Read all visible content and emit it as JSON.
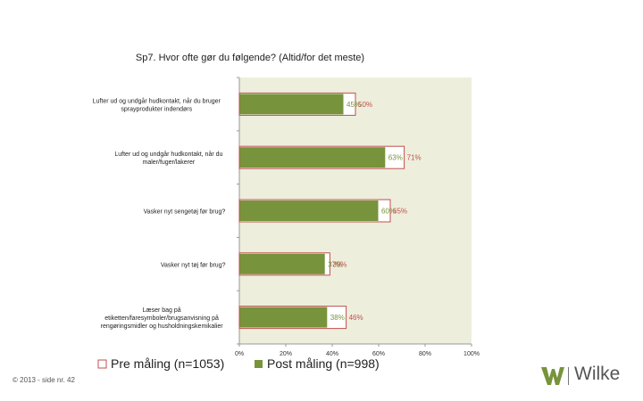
{
  "slide": {
    "footer": "© 2013 - side nr. 42",
    "logo_text": "Wilke",
    "logo_icon": "wilke-w-icon"
  },
  "chart_data": {
    "type": "bar",
    "orientation": "horizontal",
    "title": "Sp7. Hvor ofte gør du følgende? (Altid/for det meste)",
    "categories": [
      "Lufter ud og undgår hudkontakt, når du bruger sprayprodukter indendørs",
      "Lufter ud og undgår hudkontakt, når du maler/fuger/lakerer",
      "Vasker nyt sengetøj før brug?",
      "Vasker nyt tøj før brug?",
      "Læser bag på etiketten/faresymboler/brugsanvisning på rengøringsmidler og husholdningskemikalier"
    ],
    "series": [
      {
        "name": "Pre måling (n=1053)",
        "values": [
          50,
          71,
          65,
          39,
          46
        ],
        "color": "#ffffff",
        "border": "#c0504d",
        "label_color": "#c0504d"
      },
      {
        "name": "Post måling (n=998)",
        "values": [
          45,
          63,
          60,
          37,
          38
        ],
        "color": "#77933c",
        "border": "#77933c",
        "label_color": "#77933c"
      }
    ],
    "value_labels_pre": [
      "50%",
      "71%",
      "65%",
      "39%",
      "46%"
    ],
    "value_labels_post": [
      "45%",
      "63%",
      "60%",
      "37%",
      "38%"
    ],
    "xlim": [
      0,
      100
    ],
    "xticks": [
      "0%",
      "20%",
      "40%",
      "60%",
      "80%",
      "100%"
    ],
    "plot_background": "#eeeedd",
    "legend_position": "bottom"
  }
}
